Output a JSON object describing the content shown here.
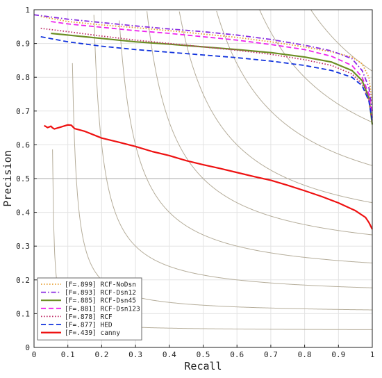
{
  "chart_data": {
    "type": "line",
    "title": "",
    "xlabel": "Recall",
    "ylabel": "Precision",
    "xlim": [
      0,
      1
    ],
    "ylim": [
      0,
      1
    ],
    "xticks": [
      "0",
      "0.1",
      "0.2",
      "0.3",
      "0.4",
      "0.5",
      "0.6",
      "0.7",
      "0.8",
      "0.9",
      "1"
    ],
    "yticks": [
      "0",
      "0.1",
      "0.2",
      "0.3",
      "0.4",
      "0.5",
      "0.6",
      "0.7",
      "0.8",
      "0.9",
      "1"
    ],
    "grid": true,
    "iso_f_values": [
      0.1,
      0.2,
      0.3,
      0.4,
      0.5,
      0.6,
      0.7,
      0.8,
      0.9
    ],
    "highlight_line_y": 0.5,
    "legend_position": "bottom-left",
    "series": [
      {
        "name": "[F=.899] RCF-NoDsn",
        "color": "#e8a23a",
        "style": "dotted",
        "x": [
          0.02,
          0.1,
          0.2,
          0.3,
          0.4,
          0.5,
          0.6,
          0.7,
          0.8,
          0.88,
          0.94,
          0.97,
          0.99,
          1.0
        ],
        "y": [
          0.98,
          0.965,
          0.955,
          0.947,
          0.938,
          0.928,
          0.918,
          0.905,
          0.89,
          0.875,
          0.86,
          0.84,
          0.8,
          0.72
        ]
      },
      {
        "name": "[F=.893] RCF-Dsn12",
        "color": "#8a2be2",
        "style": "dashdot",
        "x": [
          0.0,
          0.1,
          0.2,
          0.3,
          0.4,
          0.5,
          0.6,
          0.7,
          0.8,
          0.88,
          0.94,
          0.97,
          0.99,
          1.0
        ],
        "y": [
          0.985,
          0.972,
          0.962,
          0.952,
          0.943,
          0.935,
          0.925,
          0.912,
          0.895,
          0.878,
          0.855,
          0.82,
          0.77,
          0.7
        ]
      },
      {
        "name": "[F=.885] RCF-Dsn45",
        "color": "#6b8e23",
        "style": "solid",
        "x": [
          0.05,
          0.1,
          0.2,
          0.3,
          0.4,
          0.5,
          0.6,
          0.7,
          0.8,
          0.88,
          0.94,
          0.97,
          0.99,
          1.0
        ],
        "y": [
          0.93,
          0.925,
          0.915,
          0.905,
          0.898,
          0.89,
          0.882,
          0.873,
          0.86,
          0.845,
          0.82,
          0.79,
          0.74,
          0.66
        ]
      },
      {
        "name": "[F=.881] RCF-Dsn123",
        "color": "#ee22ee",
        "style": "dashed",
        "x": [
          0.05,
          0.1,
          0.2,
          0.3,
          0.4,
          0.5,
          0.6,
          0.7,
          0.8,
          0.88,
          0.94,
          0.97,
          0.99,
          1.0
        ],
        "y": [
          0.965,
          0.958,
          0.948,
          0.938,
          0.93,
          0.92,
          0.91,
          0.897,
          0.882,
          0.862,
          0.835,
          0.8,
          0.75,
          0.68
        ]
      },
      {
        "name": "[F=.878] RCF",
        "color": "#c0306a",
        "style": "dotted",
        "x": [
          0.02,
          0.1,
          0.2,
          0.3,
          0.4,
          0.5,
          0.6,
          0.7,
          0.8,
          0.88,
          0.94,
          0.97,
          0.99,
          1.0
        ],
        "y": [
          0.945,
          0.935,
          0.922,
          0.91,
          0.9,
          0.89,
          0.88,
          0.868,
          0.852,
          0.835,
          0.81,
          0.78,
          0.73,
          0.67
        ]
      },
      {
        "name": "[F=.877] HED",
        "color": "#1133dd",
        "style": "dashed",
        "x": [
          0.02,
          0.1,
          0.2,
          0.3,
          0.4,
          0.5,
          0.6,
          0.7,
          0.8,
          0.88,
          0.94,
          0.97,
          0.99,
          1.0
        ],
        "y": [
          0.92,
          0.905,
          0.892,
          0.882,
          0.874,
          0.866,
          0.858,
          0.848,
          0.835,
          0.82,
          0.8,
          0.775,
          0.73,
          0.67
        ]
      },
      {
        "name": "[F=.439] canny",
        "color": "#ee1111",
        "style": "solid",
        "x": [
          0.03,
          0.04,
          0.05,
          0.055,
          0.06,
          0.08,
          0.1,
          0.11,
          0.12,
          0.15,
          0.2,
          0.25,
          0.3,
          0.35,
          0.4,
          0.45,
          0.5,
          0.55,
          0.6,
          0.65,
          0.7,
          0.75,
          0.8,
          0.85,
          0.9,
          0.95,
          0.98,
          0.99,
          1.0
        ],
        "y": [
          0.657,
          0.651,
          0.655,
          0.65,
          0.647,
          0.653,
          0.659,
          0.658,
          0.648,
          0.64,
          0.62,
          0.608,
          0.595,
          0.58,
          0.568,
          0.553,
          0.541,
          0.53,
          0.518,
          0.506,
          0.495,
          0.48,
          0.464,
          0.447,
          0.428,
          0.405,
          0.385,
          0.37,
          0.35
        ]
      }
    ]
  }
}
